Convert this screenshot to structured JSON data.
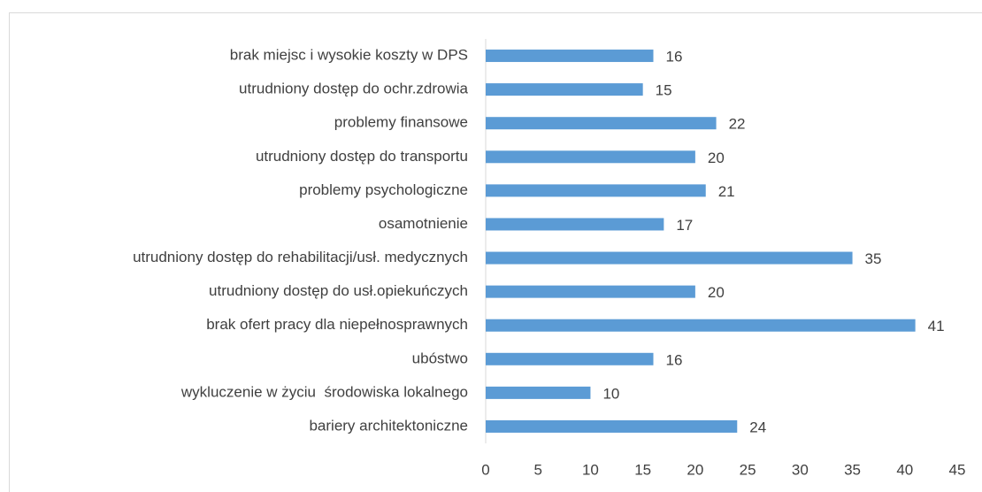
{
  "chart_data": {
    "type": "bar",
    "orientation": "horizontal",
    "categories": [
      "brak miejsc i wysokie koszty w DPS",
      "utrudniony dostęp do ochr.zdrowia",
      "problemy finansowe",
      "utrudniony dostęp do transportu",
      "problemy psychologiczne",
      "osamotnienie",
      "utrudniony dostęp do rehabilitacji/usł. medycznych",
      "utrudniony dostęp do usł.opiekuńczych",
      "brak ofert pracy dla niepełnosprawnych",
      "ubóstwo",
      "wykluczenie w życiu  środowiska lokalnego",
      "bariery architektoniczne"
    ],
    "values": [
      16,
      15,
      22,
      20,
      21,
      17,
      35,
      20,
      41,
      16,
      10,
      24
    ],
    "color": "#5b9bd5",
    "xlim": [
      0,
      45
    ],
    "xticks": [
      0,
      5,
      10,
      15,
      20,
      25,
      30,
      35,
      40,
      45
    ],
    "grid": false
  }
}
